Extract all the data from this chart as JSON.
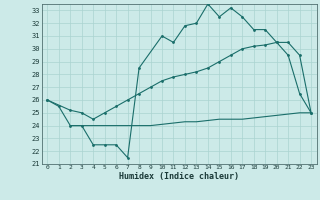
{
  "xlabel": "Humidex (Indice chaleur)",
  "background_color": "#cceae8",
  "grid_color": "#aad4d0",
  "line_color": "#1a6e6a",
  "xlim": [
    -0.5,
    23.5
  ],
  "ylim": [
    21,
    33.5
  ],
  "xticks": [
    0,
    1,
    2,
    3,
    4,
    5,
    6,
    7,
    8,
    9,
    10,
    11,
    12,
    13,
    14,
    15,
    16,
    17,
    18,
    19,
    20,
    21,
    22,
    23
  ],
  "yticks": [
    21,
    22,
    23,
    24,
    25,
    26,
    27,
    28,
    29,
    30,
    31,
    32,
    33
  ],
  "line1_x": [
    0,
    1,
    2,
    3,
    4,
    5,
    6,
    7,
    8,
    10,
    11,
    12,
    13,
    14,
    15,
    16,
    17,
    18,
    19,
    20,
    21,
    22,
    23
  ],
  "line1_y": [
    26,
    25.5,
    24,
    24,
    22.5,
    22.5,
    22.5,
    21.5,
    28.5,
    31,
    30.5,
    31.8,
    32,
    33.5,
    32.5,
    33.2,
    32.5,
    31.5,
    31.5,
    30.5,
    29.5,
    26.5,
    25
  ],
  "line2_x": [
    0,
    2,
    3,
    4,
    5,
    6,
    7,
    8,
    9,
    10,
    11,
    12,
    13,
    14,
    15,
    16,
    17,
    18,
    19,
    20,
    21,
    22,
    23
  ],
  "line2_y": [
    26,
    25.2,
    25.0,
    24.5,
    25,
    25.5,
    26,
    26.5,
    27,
    27.5,
    27.8,
    28,
    28.2,
    28.5,
    29,
    29.5,
    30,
    30.2,
    30.3,
    30.5,
    30.5,
    29.5,
    25
  ],
  "line3_x": [
    2,
    3,
    4,
    5,
    6,
    7,
    8,
    9,
    10,
    11,
    12,
    13,
    14,
    15,
    16,
    17,
    18,
    19,
    20,
    21,
    22,
    23
  ],
  "line3_y": [
    24,
    24,
    24,
    24,
    24,
    24,
    24,
    24,
    24.1,
    24.2,
    24.3,
    24.3,
    24.4,
    24.5,
    24.5,
    24.5,
    24.6,
    24.7,
    24.8,
    24.9,
    25,
    25
  ]
}
